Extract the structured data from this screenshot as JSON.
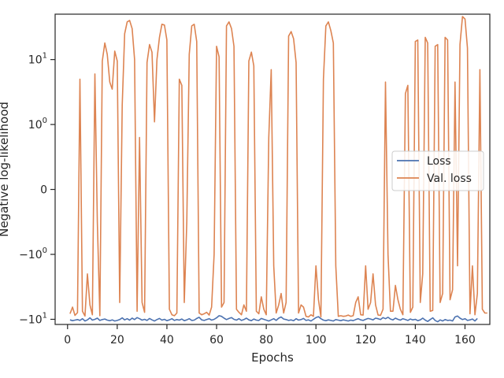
{
  "chart_data": {
    "type": "line",
    "xlabel": "Epochs",
    "ylabel": "Negative log-likelihood",
    "yscale": "symlog",
    "xlim": [
      -5,
      170
    ],
    "ylim": [
      -12,
      50
    ],
    "grid": false,
    "legend_position": "center-right",
    "x_ticks": [
      0,
      20,
      40,
      60,
      80,
      100,
      120,
      140,
      160
    ],
    "y_ticks": [
      {
        "value": 10,
        "label": "10",
        "exp": "1"
      },
      {
        "value": 1,
        "label": "10",
        "exp": "0"
      },
      {
        "value": 0,
        "label": "0",
        "exp": ""
      },
      {
        "value": -1,
        "label": "−10",
        "exp": "0"
      },
      {
        "value": -10,
        "label": "−10",
        "exp": "1"
      }
    ],
    "series": [
      {
        "name": "Loss",
        "color": "#4c72b0",
        "x_start": 1,
        "values": [
          -10.2,
          -10.5,
          -10.3,
          -10.1,
          -10.4,
          -9.8,
          -10.6,
          -10.2,
          -9.5,
          -10.3,
          -10.0,
          -9.6,
          -10.4,
          -10.1,
          -9.9,
          -10.3,
          -10.5,
          -10.2,
          -10.6,
          -10.4,
          -10.1,
          -9.5,
          -10.2,
          -9.8,
          -10.3,
          -9.6,
          -10.1,
          -9.4,
          -9.8,
          -10.3,
          -10.0,
          -10.4,
          -9.7,
          -10.2,
          -10.6,
          -10.1,
          -9.7,
          -10.3,
          -10.0,
          -10.5,
          -10.2,
          -9.8,
          -10.4,
          -10.1,
          -10.3,
          -9.9,
          -10.5,
          -10.2,
          -9.8,
          -10.4,
          -10.3,
          -9.7,
          -9.3,
          -10.2,
          -10.4,
          -10.1,
          -9.8,
          -10.3,
          -10.0,
          -9.5,
          -8.8,
          -9.0,
          -9.6,
          -10.1,
          -9.7,
          -9.4,
          -10.0,
          -10.3,
          -9.8,
          -10.4,
          -10.1,
          -9.6,
          -10.2,
          -10.5,
          -9.9,
          -10.3,
          -10.4,
          -9.7,
          -10.0,
          -10.3,
          -10.6,
          -10.2,
          -9.8,
          -10.4,
          -9.6,
          -9.2,
          -9.9,
          -10.1,
          -10.4,
          -10.2,
          -10.5,
          -9.8,
          -10.3,
          -10.1,
          -9.7,
          -10.4,
          -10.2,
          -10.6,
          -10.0,
          -9.4,
          -9.1,
          -9.8,
          -10.3,
          -10.5,
          -10.2,
          -10.4,
          -10.6,
          -10.1,
          -10.3,
          -10.5,
          -10.2,
          -10.4,
          -10.6,
          -10.3,
          -10.5,
          -10.1,
          -9.8,
          -10.2,
          -10.4,
          -10.0,
          -9.7,
          -9.9,
          -10.2,
          -9.6,
          -9.8,
          -10.1,
          -9.4,
          -9.8,
          -9.3,
          -9.9,
          -10.2,
          -9.6,
          -10.0,
          -10.3,
          -9.8,
          -10.1,
          -10.4,
          -9.9,
          -10.2,
          -10.0,
          -10.5,
          -10.2,
          -9.6,
          -10.3,
          -10.8,
          -10.1,
          -9.5,
          -10.4,
          -10.9,
          -10.2,
          -10.6,
          -10.1,
          -10.4,
          -10.3,
          -10.6,
          -9.2,
          -8.9,
          -9.6,
          -10.1,
          -9.8,
          -10.4,
          -10.2,
          -9.9,
          -10.6,
          -9.7
        ]
      },
      {
        "name": "Val. loss",
        "color": "#dd8452",
        "x_start": 1,
        "values": [
          -8.2,
          -6.5,
          -8.7,
          -7.9,
          5.0,
          -7.5,
          -8.9,
          -2.0,
          -6.0,
          -8.5,
          6.0,
          -0.5,
          -8.8,
          9.5,
          18.0,
          12.0,
          4.5,
          3.5,
          13.5,
          9.5,
          -5.5,
          2.0,
          25.0,
          38.0,
          40.0,
          30.0,
          10.0,
          -7.5,
          0.8,
          -5.5,
          -7.8,
          9.0,
          17.0,
          13.0,
          1.1,
          10.0,
          22.0,
          35.0,
          34.0,
          20.0,
          -7.0,
          -8.5,
          -8.8,
          -8.0,
          5.0,
          4.0,
          -5.5,
          -0.5,
          12.0,
          33.0,
          35.0,
          19.0,
          -8.0,
          -8.5,
          -8.2,
          -7.8,
          -8.6,
          -6.5,
          -1.0,
          16.0,
          11.0,
          -6.5,
          -5.5,
          33.0,
          38.0,
          30.0,
          16.0,
          -7.0,
          -7.8,
          -8.5,
          -6.0,
          -7.5,
          9.5,
          13.0,
          8.0,
          -7.5,
          -8.2,
          -4.5,
          -7.0,
          -8.5,
          0.8,
          7.0,
          -1.5,
          -8.0,
          -6.0,
          -4.0,
          -8.0,
          -5.5,
          23.0,
          27.0,
          21.0,
          9.0,
          -8.0,
          -6.0,
          -6.5,
          -9.0,
          -9.2,
          -8.5,
          -9.0,
          -1.5,
          -5.0,
          -9.2,
          5.0,
          33.0,
          38.0,
          28.0,
          18.0,
          -1.5,
          -9.0,
          -8.8,
          -9.0,
          -8.9,
          -8.6,
          -9.0,
          -8.8,
          -5.5,
          -4.5,
          -8.5,
          -8.6,
          -1.5,
          -7.0,
          -5.5,
          -2.0,
          -6.0,
          -8.6,
          -8.7,
          -7.0,
          4.5,
          -1.0,
          -7.5,
          -7.5,
          -3.0,
          -5.0,
          -7.0,
          -8.5,
          3.0,
          4.0,
          -7.8,
          -6.5,
          19.0,
          20.0,
          -5.5,
          -2.0,
          22.0,
          18.0,
          -7.5,
          -7.3,
          16.0,
          17.0,
          -5.5,
          -4.0,
          22.0,
          20.0,
          -5.0,
          -3.5,
          4.5,
          -1.5,
          17.0,
          46.0,
          42.0,
          15.0,
          -8.2,
          -1.5,
          -8.5,
          -4.0,
          7.0,
          -7.0,
          -8.0,
          -8.0
        ]
      }
    ]
  }
}
